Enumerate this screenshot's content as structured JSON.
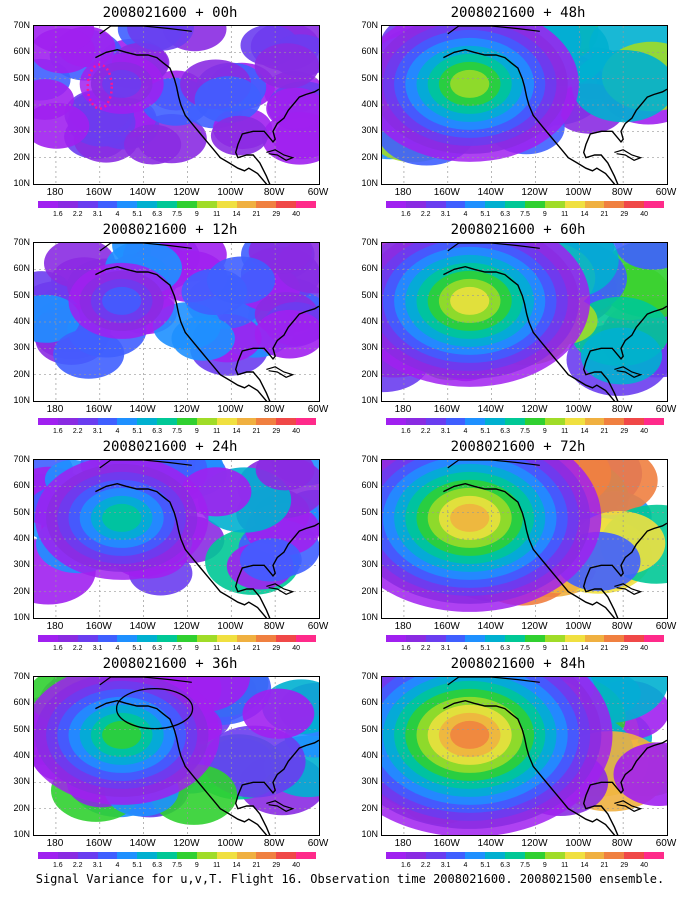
{
  "caption": "Signal Variance for u,v,T. Flight 16. Observation time 2008021600. 2008021500 ensemble.",
  "panels": [
    {
      "title": "2008021600 + 00h",
      "col": 0,
      "row": 0,
      "intensity": 0.25,
      "has_flight_track": true,
      "has_circle": false
    },
    {
      "title": "2008021600 + 48h",
      "col": 1,
      "row": 0,
      "intensity": 0.7,
      "has_flight_track": false,
      "has_circle": false
    },
    {
      "title": "2008021600 + 12h",
      "col": 0,
      "row": 1,
      "intensity": 0.35,
      "has_flight_track": false,
      "has_circle": false
    },
    {
      "title": "2008021600 + 60h",
      "col": 1,
      "row": 1,
      "intensity": 0.78,
      "has_flight_track": false,
      "has_circle": false
    },
    {
      "title": "2008021600 + 24h",
      "col": 0,
      "row": 2,
      "intensity": 0.5,
      "has_flight_track": false,
      "has_circle": false
    },
    {
      "title": "2008021600 + 72h",
      "col": 1,
      "row": 2,
      "intensity": 0.85,
      "has_flight_track": false,
      "has_circle": false
    },
    {
      "title": "2008021600 + 36h",
      "col": 0,
      "row": 3,
      "intensity": 0.6,
      "has_flight_track": false,
      "has_circle": true
    },
    {
      "title": "2008021600 + 84h",
      "col": 1,
      "row": 3,
      "intensity": 0.9,
      "has_flight_track": false,
      "has_circle": false
    }
  ],
  "lat_labels": [
    "70N",
    "60N",
    "50N",
    "40N",
    "30N",
    "20N",
    "10N"
  ],
  "lon_labels": [
    "180",
    "160W",
    "140W",
    "120W",
    "100W",
    "80W",
    "60W"
  ],
  "colorbar": {
    "labels": [
      "1.6",
      "2.2",
      "3.1",
      "4",
      "5.1",
      "6.3",
      "7.5",
      "9",
      "11",
      "14",
      "21",
      "29",
      "40"
    ],
    "colors": [
      "#a020f0",
      "#8a2be2",
      "#6a3df0",
      "#3f5fff",
      "#1e90ff",
      "#00b0d0",
      "#00c896",
      "#30d030",
      "#a0dc28",
      "#f0e040",
      "#f0b040",
      "#f08040",
      "#f04848",
      "#ff2a8a"
    ]
  },
  "extent": {
    "lon_min": 170,
    "lon_max": 300,
    "lat_min": 10,
    "lat_max": 70
  }
}
